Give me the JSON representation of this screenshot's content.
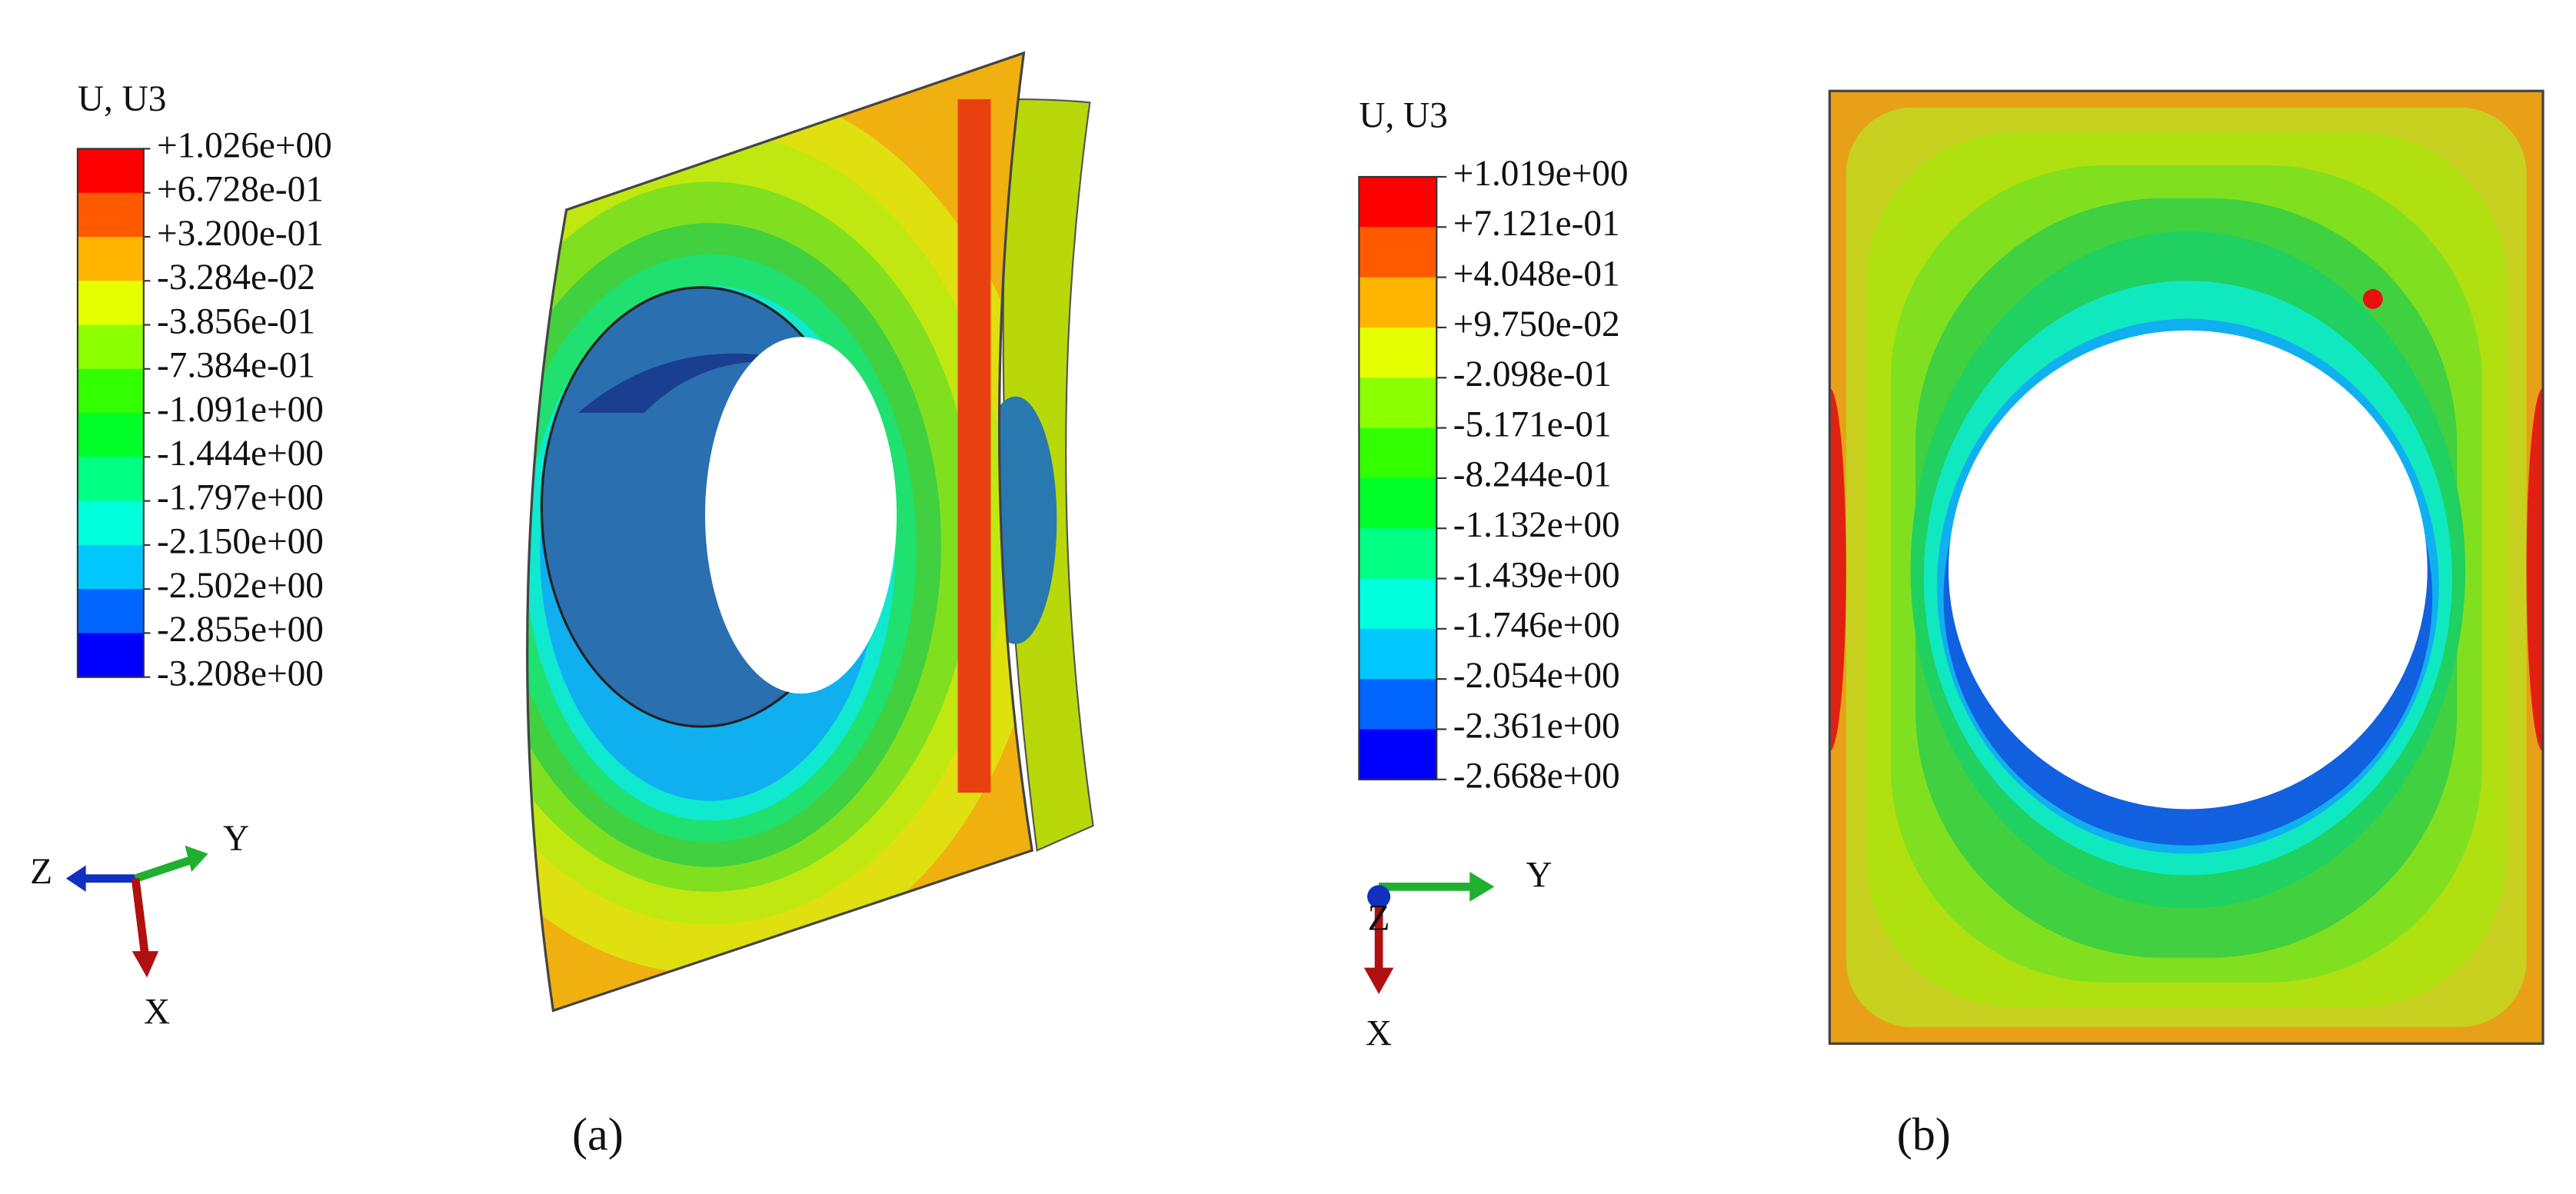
{
  "panels": [
    {
      "legend": {
        "title": "U, U3",
        "labels": [
          "+1.026e+00",
          "+6.728e-01",
          "+3.200e-01",
          "-3.284e-02",
          "-3.856e-01",
          "-7.384e-01",
          "-1.091e+00",
          "-1.444e+00",
          "-1.797e+00",
          "-2.150e+00",
          "-2.502e+00",
          "-2.855e+00",
          "-3.208e+00"
        ]
      },
      "triad": {
        "z": "Z",
        "y": "Y",
        "x": "X"
      },
      "caption": "(a)"
    },
    {
      "legend": {
        "title": "U, U3",
        "labels": [
          "+1.019e+00",
          "+7.121e-01",
          "+4.048e-01",
          "+9.750e-02",
          "-2.098e-01",
          "-5.171e-01",
          "-8.244e-01",
          "-1.132e+00",
          "-1.439e+00",
          "-1.746e+00",
          "-2.054e+00",
          "-2.361e+00",
          "-2.668e+00"
        ]
      },
      "triad": {
        "z": "Z",
        "y": "Y",
        "x": "X"
      },
      "caption": "(b)"
    }
  ]
}
